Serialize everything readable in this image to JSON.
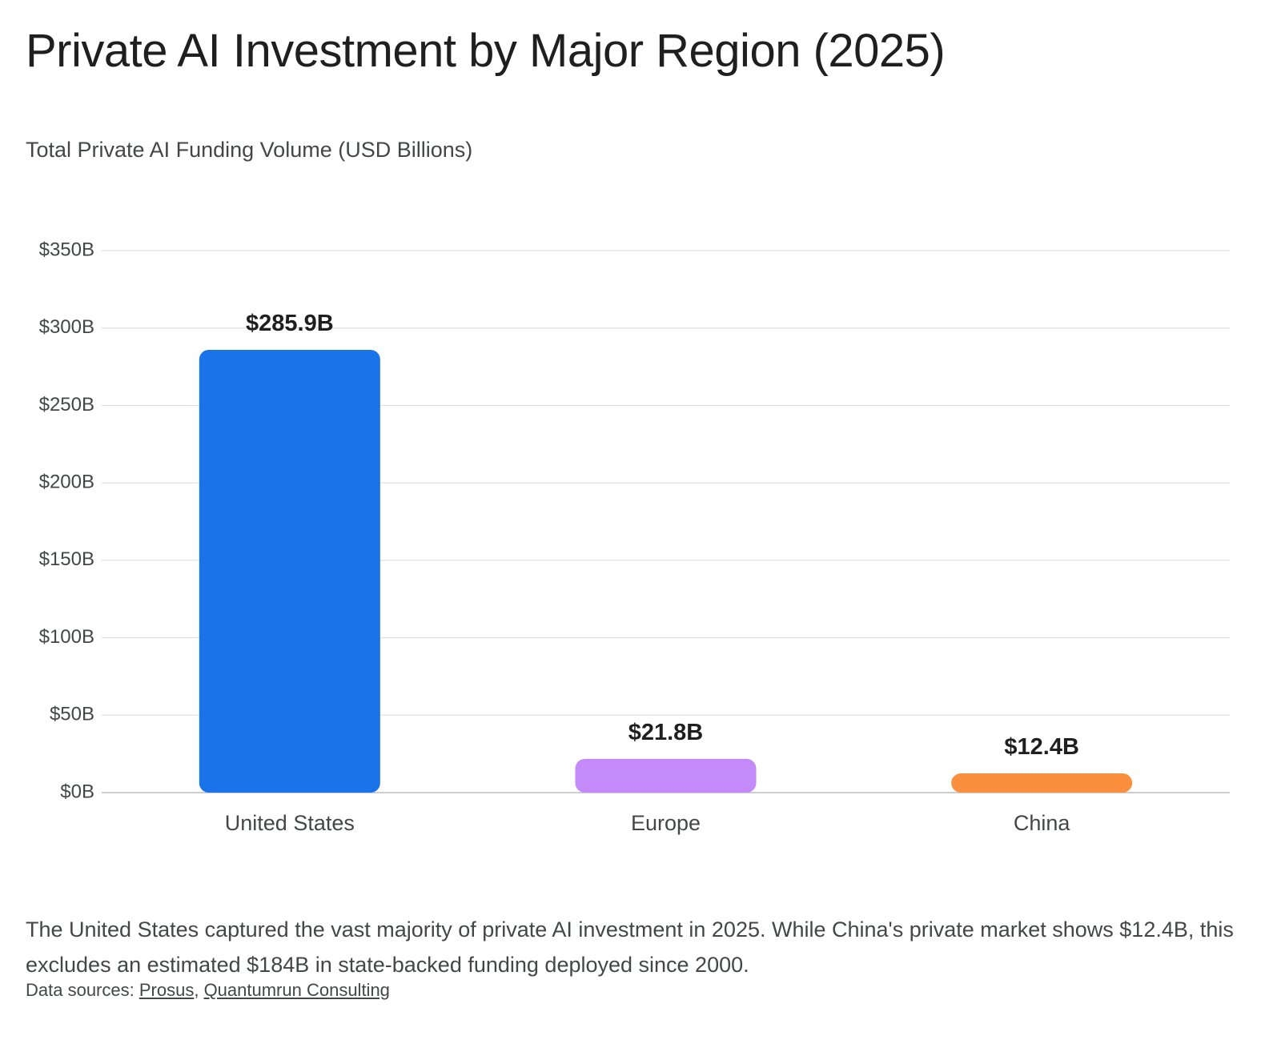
{
  "title": "Private AI Investment by Major Region (2025)",
  "subtitle": "Total Private AI Funding Volume (USD Billions)",
  "caption": "The United States captured the vast majority of private AI investment in 2025. While China's private market shows $12.4B, this excludes an estimated $184B in state-backed funding deployed since 2000.",
  "sources": {
    "prefix": "Data sources: ",
    "links": [
      "Prosus",
      "Quantumrun Consulting"
    ],
    "separator": ", "
  },
  "chart_data": {
    "type": "bar",
    "categories": [
      "United States",
      "Europe",
      "China"
    ],
    "values": [
      285.9,
      21.8,
      12.4
    ],
    "data_labels": [
      "$285.9B",
      "$21.8B",
      "$12.4B"
    ],
    "colors": [
      "#1a73e8",
      "#c58af9",
      "#fa903e"
    ],
    "ylabel": "Total Private AI Funding Volume (USD Billions)",
    "xlabel": "",
    "ylim": [
      0,
      350
    ],
    "yticks": [
      0,
      50,
      100,
      150,
      200,
      250,
      300,
      350
    ],
    "ytick_labels": [
      "$0B",
      "$50B",
      "$100B",
      "$150B",
      "$200B",
      "$250B",
      "$300B",
      "$350B"
    ],
    "grid": true,
    "legend": "none"
  }
}
